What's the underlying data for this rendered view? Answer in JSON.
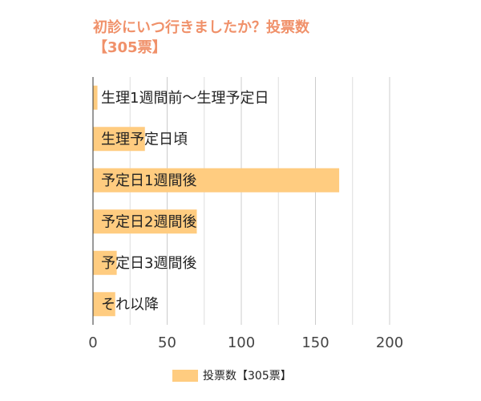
{
  "chart_data": {
    "type": "bar",
    "orientation": "horizontal",
    "title": "初診にいつ行きましたか？投票数",
    "subtitle": "【305票】",
    "categories": [
      "生理1週間前～生理予定日",
      "生理予定日頃",
      "予定日1週間後",
      "予定日2週間後",
      "予定日3週間後",
      "それ以降"
    ],
    "series": [
      {
        "name": "投票数【305票】",
        "color": "#ffcc80",
        "values": [
          3,
          35,
          166,
          70,
          16,
          15
        ]
      }
    ],
    "xlim": [
      0,
      200
    ],
    "xticks": [
      0,
      50,
      100,
      150,
      200
    ],
    "grid": true,
    "minor_grid": true,
    "title_color": "#f0916a",
    "legend": "bottom"
  }
}
